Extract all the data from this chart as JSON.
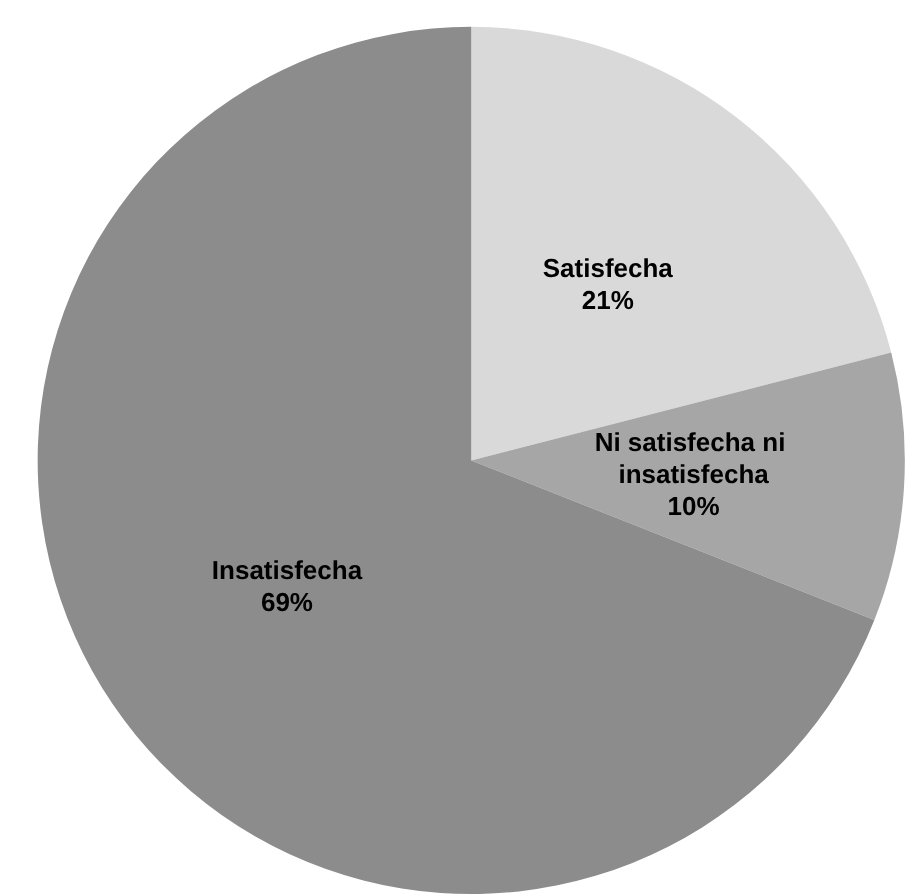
{
  "chart_data": {
    "type": "pie",
    "categories": [
      "Satisfecha",
      "Ni satisfecha ni insatisfecha",
      "Insatisfecha"
    ],
    "values": [
      21,
      10,
      69
    ],
    "value_labels": [
      "21%",
      "10%",
      "69%"
    ],
    "colors": [
      "#d9d9d9",
      "#a6a6a6",
      "#8c8c8c"
    ],
    "legend": false
  }
}
